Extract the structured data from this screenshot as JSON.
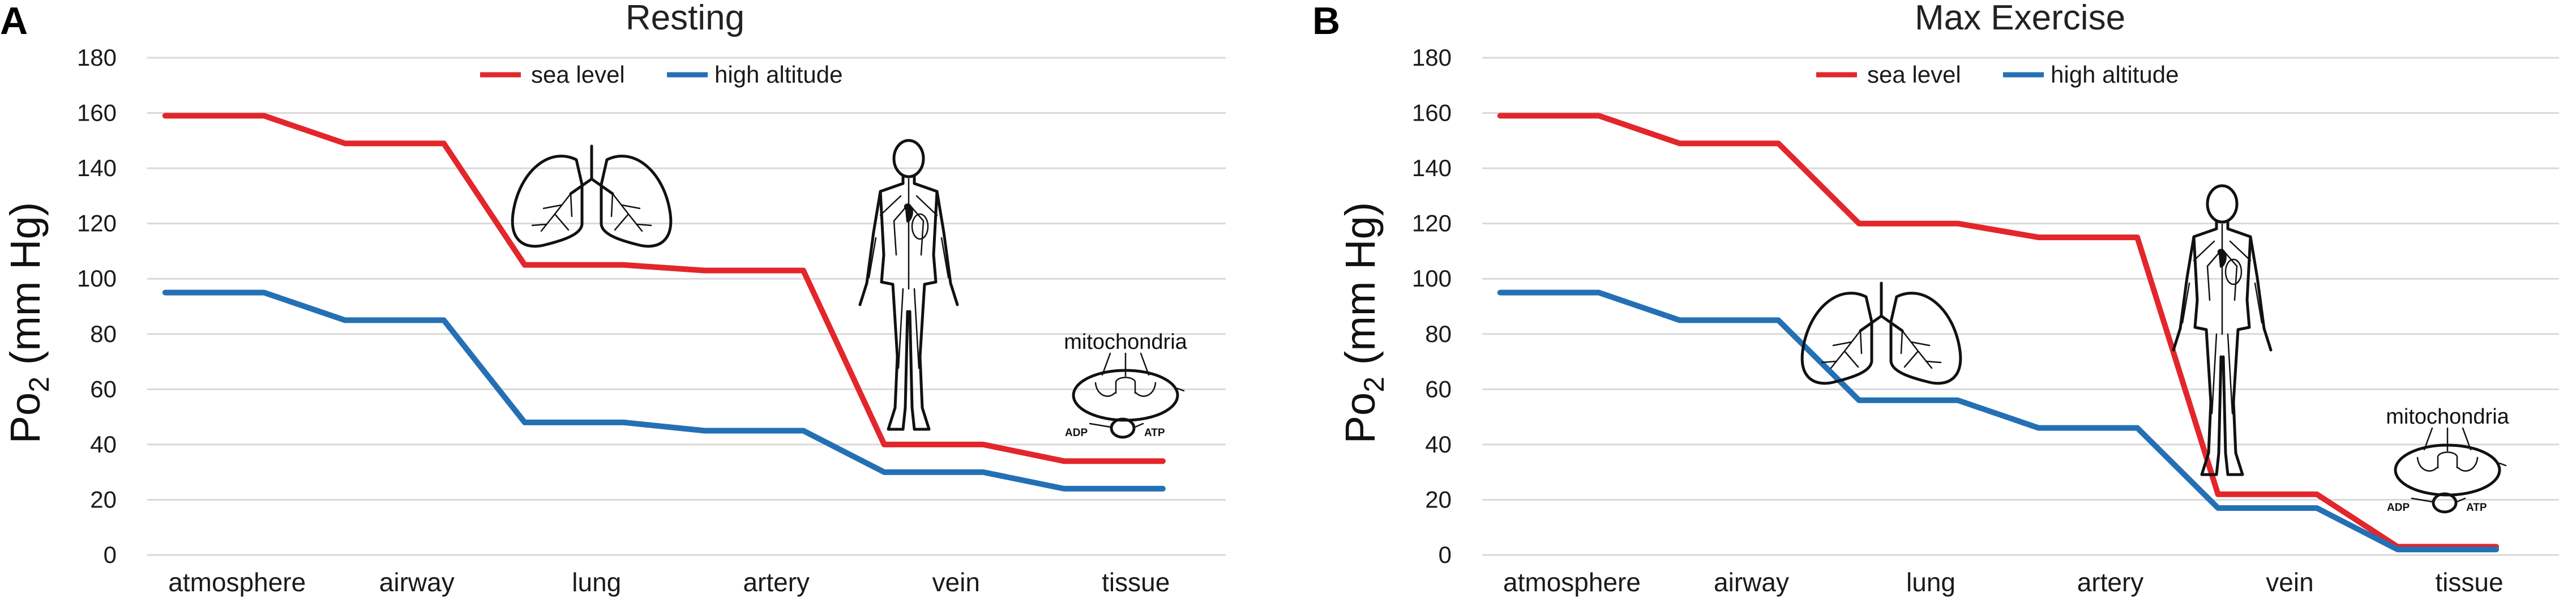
{
  "figure": {
    "panels": [
      {
        "letter": "A"
      },
      {
        "letter": "B"
      }
    ],
    "mitochondria_label": "mitochondria",
    "adp_label": "ADP",
    "atp_label": "ATP"
  },
  "colors": {
    "sea_level": "#e3262b",
    "high_altitude": "#2470b5"
  },
  "chart_data": [
    {
      "type": "line",
      "title": "Resting",
      "xlabel": "",
      "ylabel": "Po2 (mm Hg)",
      "ylabel_main": "Po",
      "ylabel_sub": "2",
      "ylabel_unit": " (mm Hg)",
      "ylim": [
        0,
        180
      ],
      "yticks": [
        "0",
        "20",
        "40",
        "60",
        "80",
        "100",
        "120",
        "140",
        "160",
        "180"
      ],
      "categories": [
        "atmosphere",
        "airway",
        "lung",
        "artery",
        "vein",
        "tissue"
      ],
      "legend": [
        "sea level",
        "high altitude"
      ],
      "legend_position": "top-center",
      "series": [
        {
          "name": "sea level",
          "values": [
            159,
            149,
            105,
            103,
            40,
            34
          ]
        },
        {
          "name": "high altitude",
          "values": [
            95,
            85,
            48,
            45,
            30,
            24
          ]
        }
      ]
    },
    {
      "type": "line",
      "title": "Max Exercise",
      "xlabel": "",
      "ylabel": "Po2 (mm Hg)",
      "ylabel_main": "Po",
      "ylabel_sub": "2",
      "ylabel_unit": " (mm Hg)",
      "ylim": [
        0,
        180
      ],
      "yticks": [
        "0",
        "20",
        "40",
        "60",
        "80",
        "100",
        "120",
        "140",
        "160",
        "180"
      ],
      "categories": [
        "atmosphere",
        "airway",
        "lung",
        "artery",
        "vein",
        "tissue"
      ],
      "legend": [
        "sea level",
        "high altitude"
      ],
      "legend_position": "top-center",
      "series": [
        {
          "name": "sea level",
          "values": [
            159,
            149,
            120,
            115,
            22,
            3
          ]
        },
        {
          "name": "high altitude",
          "values": [
            95,
            85,
            56,
            46,
            17,
            2
          ]
        }
      ]
    }
  ]
}
